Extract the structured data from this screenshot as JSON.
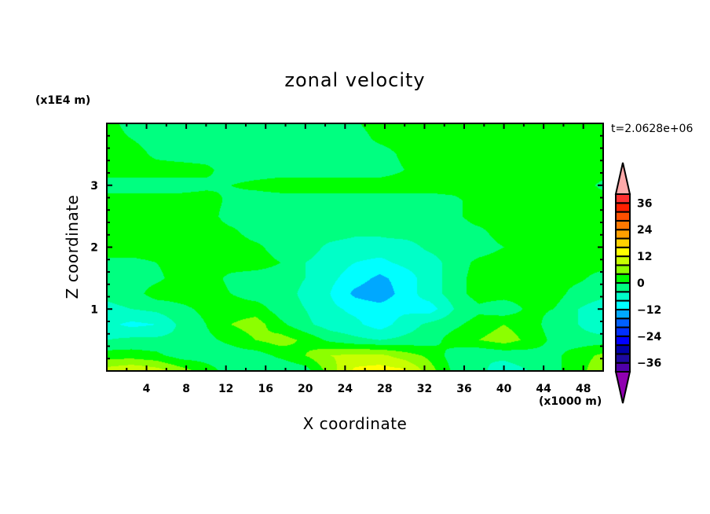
{
  "chart_data": {
    "type": "heatmap",
    "subtype": "filled-contour",
    "title": "zonal velocity",
    "xlabel": "X coordinate",
    "ylabel": "Z coordinate",
    "x_unit_label": "(x1000 m)",
    "y_unit_label": "(x1E4 m)",
    "annotation": "t=2.0628e+06",
    "xlim": [
      0,
      50
    ],
    "ylim": [
      0,
      4
    ],
    "x_ticks": [
      4,
      8,
      12,
      16,
      20,
      24,
      28,
      32,
      36,
      40,
      44,
      48
    ],
    "y_ticks": [
      1,
      2,
      3
    ],
    "grid": false,
    "x": [
      0,
      2.5,
      5,
      7.5,
      10,
      12.5,
      15,
      17.5,
      20,
      22.5,
      25,
      27.5,
      30,
      32.5,
      35,
      37.5,
      40,
      42.5,
      45,
      47.5,
      50
    ],
    "z": [
      4,
      3.75,
      3.5,
      3.25,
      3,
      2.75,
      2.5,
      2.25,
      2,
      1.75,
      1.5,
      1.25,
      1,
      0.75,
      0.5,
      0.25,
      0
    ],
    "values": [
      [
        2,
        -2,
        -2,
        -2,
        -2,
        -2,
        -2,
        -2,
        -2,
        -2,
        -0.5,
        2,
        2,
        2,
        2,
        2,
        2,
        2,
        2,
        2,
        2
      ],
      [
        2,
        0,
        -2,
        -2,
        -2,
        -2,
        -2,
        -2,
        -2,
        -2,
        -2,
        1,
        2,
        2,
        2,
        2,
        2,
        2,
        2,
        2,
        2
      ],
      [
        2,
        2,
        -1,
        -2,
        -2,
        -2,
        -2,
        -2,
        -2,
        -2,
        -2,
        -2,
        1,
        2,
        2,
        2,
        2,
        2,
        2,
        2,
        2
      ],
      [
        2,
        2,
        2,
        2,
        1,
        -2,
        -2,
        -2,
        -2,
        -2,
        -2,
        -2,
        0,
        2,
        2,
        2,
        2,
        2,
        2,
        2,
        2
      ],
      [
        -2,
        -2,
        -2,
        -2,
        -1,
        0,
        1,
        2,
        2,
        2,
        2,
        2,
        2,
        2,
        2,
        2,
        2,
        2,
        2,
        2,
        -1
      ],
      [
        2,
        2,
        2,
        2,
        2,
        -1,
        -2,
        -2,
        -2,
        -2,
        -2,
        -2,
        -2,
        -2,
        -1,
        2,
        2,
        2,
        2,
        2,
        2
      ],
      [
        2,
        2,
        2,
        2,
        2,
        -2,
        -2,
        -2,
        -2,
        -2,
        -2,
        -2,
        -2,
        -2,
        -1,
        2,
        2,
        2,
        2,
        2,
        2
      ],
      [
        2,
        2,
        2,
        2,
        2,
        1,
        -2,
        -2,
        -2,
        -2,
        -3,
        -3,
        -2,
        -2,
        -2,
        -1,
        2,
        2,
        2,
        2,
        2
      ],
      [
        2,
        2,
        2,
        2,
        2,
        2,
        1,
        -2,
        -2,
        -5,
        -6,
        -6,
        -6,
        -3,
        -2,
        -2,
        0,
        2,
        2,
        2,
        2
      ],
      [
        -1,
        -1,
        0,
        2,
        2,
        2,
        2,
        0,
        -4,
        -6,
        -8,
        -9,
        -7,
        -6,
        -2,
        1,
        2,
        2,
        2,
        2,
        2
      ],
      [
        -2,
        -2,
        -1,
        2,
        2,
        -1,
        -2,
        -2,
        -4,
        -7,
        -10,
        -13,
        -10,
        -6,
        -2,
        2,
        2,
        2,
        2,
        1,
        -2
      ],
      [
        -3,
        -2,
        2,
        2,
        2,
        0,
        -2,
        -2,
        -5,
        -8,
        -13,
        -15,
        -10,
        -6,
        -2,
        2,
        2,
        2,
        2,
        -2,
        -3
      ],
      [
        -5,
        -4,
        -3,
        -1,
        1,
        2,
        2,
        -2,
        -4,
        -7,
        -9,
        -10,
        -9,
        -10,
        -4,
        -1,
        -3,
        1,
        0,
        -4,
        -6
      ],
      [
        -7,
        -9,
        -8,
        -3,
        0,
        4,
        6,
        1,
        -3,
        -6,
        -7,
        -10,
        -6,
        -3,
        -1,
        2,
        4,
        2,
        -2,
        -4,
        -8
      ],
      [
        -4,
        -3,
        -3,
        -3,
        -1,
        1,
        4,
        6,
        3,
        -1,
        -3,
        -4,
        -3,
        -2,
        2,
        4,
        6,
        3,
        -1,
        -2,
        -2
      ],
      [
        2,
        2,
        1,
        -2,
        -2,
        -2,
        -2,
        1,
        4,
        8,
        9,
        9,
        6,
        3,
        -2,
        -4,
        -3,
        -2,
        -1,
        2,
        5
      ],
      [
        10,
        12,
        10,
        6,
        2,
        -2,
        -2,
        -4,
        -2,
        6,
        13,
        14,
        13,
        6,
        -1,
        -3,
        -6,
        -4,
        -1,
        2,
        8
      ]
    ],
    "colorbar": {
      "levels": [
        -40,
        -36,
        -32,
        -28,
        -24,
        -20,
        -16,
        -12,
        -8,
        -4,
        0,
        4,
        8,
        12,
        16,
        20,
        24,
        28,
        32,
        36,
        40
      ],
      "labels": [
        "36",
        "24",
        "12",
        "0",
        "-12",
        "-24",
        "-36"
      ],
      "label_values": [
        36,
        24,
        12,
        0,
        -12,
        -24,
        -36
      ],
      "colors": [
        "#5000a8",
        "#1e0aa0",
        "#0000a8",
        "#0000ff",
        "#0030ff",
        "#0060ff",
        "#00a8ff",
        "#00ffff",
        "#00ffc8",
        "#00ff80",
        "#00ff00",
        "#8cff00",
        "#c8ff00",
        "#ffff00",
        "#ffd200",
        "#ffa000",
        "#ff7800",
        "#ff5000",
        "#ff2000",
        "#ff3030"
      ],
      "over_color": "#ffaaaa",
      "under_color": "#9000b0",
      "orientation": "vertical",
      "placement": "right"
    }
  }
}
